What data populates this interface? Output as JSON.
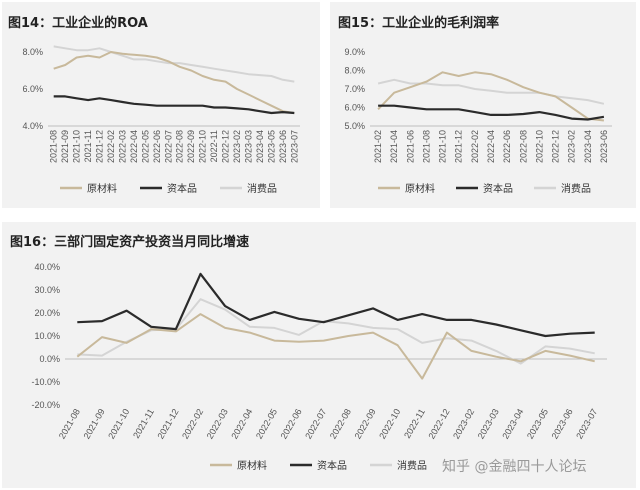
{
  "colors": {
    "raw": "#c8b99b",
    "capital": "#2b2b2b",
    "consumer": "#d4d4d4",
    "panel": "#f2f2f2"
  },
  "legend": [
    "原材料",
    "资本品",
    "消费品"
  ],
  "watermark": "知乎 @金融四十人论坛",
  "chart_data": [
    {
      "type": "line",
      "title": "图14：工业企业的ROA",
      "x": [
        "2021-08",
        "2021-09",
        "2021-10",
        "2021-11",
        "2021-12",
        "2022-02",
        "2022-03",
        "2022-04",
        "2022-05",
        "2022-06",
        "2022-07",
        "2022-08",
        "2022-09",
        "2022-10",
        "2022-11",
        "2022-12",
        "2023-02",
        "2023-03",
        "2023-04",
        "2023-05",
        "2023-06",
        "2023-07"
      ],
      "ylim": [
        4.0,
        8.0
      ],
      "yticks": [
        "4.0%",
        "6.0%",
        "8.0%"
      ],
      "yticks_values": [
        4.0,
        6.0,
        8.0
      ],
      "grid": false,
      "legend_position": "bottom",
      "series": [
        {
          "name": "原材料",
          "values": [
            7.1,
            7.3,
            7.7,
            7.8,
            7.7,
            8.0,
            7.9,
            7.85,
            7.8,
            7.7,
            7.5,
            7.2,
            7.0,
            6.7,
            6.5,
            6.4,
            6.0,
            5.7,
            5.4,
            5.1,
            4.8,
            4.7
          ]
        },
        {
          "name": "资本品",
          "values": [
            5.6,
            5.6,
            5.5,
            5.4,
            5.5,
            5.4,
            5.3,
            5.2,
            5.15,
            5.1,
            5.1,
            5.1,
            5.1,
            5.1,
            5.0,
            5.0,
            4.95,
            4.9,
            4.8,
            4.7,
            4.75,
            4.7
          ]
        },
        {
          "name": "消费品",
          "values": [
            8.3,
            8.2,
            8.1,
            8.1,
            8.2,
            8.0,
            7.8,
            7.6,
            7.6,
            7.5,
            7.4,
            7.4,
            7.3,
            7.2,
            7.1,
            7.0,
            6.9,
            6.8,
            6.75,
            6.7,
            6.5,
            6.4
          ]
        }
      ]
    },
    {
      "type": "line",
      "title": "图15：工业企业的毛利润率",
      "x": [
        "2021-02",
        "2021-04",
        "2021-06",
        "2021-08",
        "2021-10",
        "2021-12",
        "2022-02",
        "2022-04",
        "2022-06",
        "2022-08",
        "2022-10",
        "2022-12",
        "2023-02",
        "2023-04",
        "2023-06"
      ],
      "ylim": [
        5.0,
        9.0
      ],
      "yticks": [
        "5.0%",
        "6.0%",
        "7.0%",
        "8.0%",
        "9.0%"
      ],
      "yticks_values": [
        5.0,
        6.0,
        7.0,
        8.0,
        9.0
      ],
      "grid": false,
      "legend_position": "bottom",
      "series": [
        {
          "name": "原材料",
          "values": [
            5.9,
            6.8,
            7.1,
            7.4,
            7.9,
            7.7,
            7.9,
            7.8,
            7.5,
            7.1,
            6.8,
            6.6,
            6.0,
            5.4,
            5.3
          ]
        },
        {
          "name": "资本品",
          "values": [
            6.1,
            6.1,
            6.0,
            5.9,
            5.9,
            5.9,
            5.75,
            5.6,
            5.6,
            5.65,
            5.75,
            5.6,
            5.4,
            5.35,
            5.5
          ]
        },
        {
          "name": "消费品",
          "values": [
            7.3,
            7.5,
            7.3,
            7.3,
            7.2,
            7.2,
            7.0,
            6.9,
            6.8,
            6.8,
            6.8,
            6.6,
            6.5,
            6.4,
            6.2
          ]
        }
      ]
    },
    {
      "type": "line",
      "title": "图16：三部门固定资产投资当月同比增速",
      "x": [
        "2021-08",
        "2021-09",
        "2021-10",
        "2021-11",
        "2021-12",
        "2022-02",
        "2022-03",
        "2022-04",
        "2022-05",
        "2022-06",
        "2022-07",
        "2022-08",
        "2022-09",
        "2022-10",
        "2022-11",
        "2022-12",
        "2023-02",
        "2023-03",
        "2023-04",
        "2023-05",
        "2023-06",
        "2023-07"
      ],
      "ylim": [
        -20,
        40
      ],
      "yticks": [
        "-20.0%",
        "-10.0%",
        "0.0%",
        "10.0%",
        "20.0%",
        "30.0%",
        "40.0%"
      ],
      "yticks_values": [
        -20,
        -10,
        0,
        10,
        20,
        30,
        40
      ],
      "grid": false,
      "legend_position": "bottom",
      "series": [
        {
          "name": "原材料",
          "values": [
            1,
            9.5,
            7,
            13,
            12,
            19.5,
            13.5,
            11.5,
            8,
            7.5,
            8,
            10,
            11.5,
            6,
            -8.5,
            11.5,
            3.5,
            1,
            -1,
            3.5,
            1.5,
            -1
          ]
        },
        {
          "name": "资本品",
          "values": [
            16,
            16.5,
            21,
            14,
            13,
            37,
            23,
            17,
            20.5,
            17.5,
            16,
            19,
            22,
            17,
            19.5,
            17,
            17,
            15,
            12.5,
            10,
            11,
            11.5
          ]
        },
        {
          "name": "消费品",
          "values": [
            2,
            1.5,
            7.5,
            12.5,
            13,
            26,
            21.5,
            14,
            13.5,
            10.5,
            16.5,
            15.5,
            13.5,
            13,
            7,
            9,
            8,
            3.5,
            -2,
            5.5,
            4.5,
            2.5
          ]
        }
      ]
    }
  ]
}
